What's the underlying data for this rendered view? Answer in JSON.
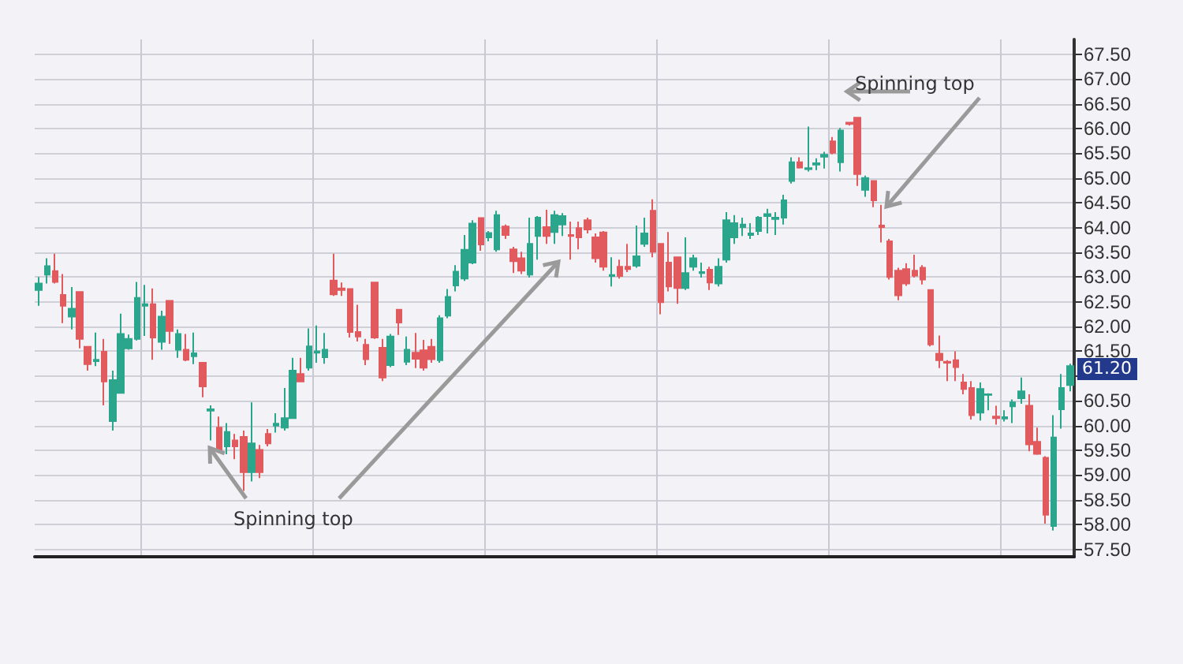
{
  "chart_data": {
    "type": "candlestick",
    "categories": [
      null,
      null,
      null,
      null,
      null,
      null,
      null,
      null,
      null,
      null,
      null,
      null,
      null,
      null,
      null,
      null,
      null,
      null,
      null,
      null,
      null,
      null,
      null,
      null,
      null,
      null,
      null,
      null,
      null,
      null,
      null,
      null,
      null,
      null,
      null,
      null,
      null,
      null,
      null,
      null,
      null,
      null,
      null,
      null,
      null,
      null,
      null,
      null,
      null,
      null,
      null,
      null,
      null,
      null,
      null,
      null,
      null,
      null,
      null,
      null,
      null,
      null,
      null,
      null,
      null,
      null,
      null,
      null,
      null,
      null,
      null,
      null,
      null,
      null,
      null,
      null,
      null,
      null,
      null,
      null,
      null,
      null,
      null,
      null,
      null,
      null,
      null,
      null,
      null,
      null,
      null,
      null,
      null,
      null,
      null,
      null,
      null,
      null,
      null,
      null,
      null,
      null,
      null,
      null,
      null,
      null,
      null,
      null,
      null,
      null,
      null,
      null,
      null,
      null,
      null,
      null,
      null,
      null,
      null,
      null,
      null,
      null,
      null,
      null,
      null,
      null,
      null
    ],
    "ohlc": [
      [
        62.74,
        63.0,
        62.42,
        62.87
      ],
      [
        63.05,
        63.38,
        62.87,
        63.22
      ],
      [
        63.12,
        63.47,
        62.87,
        62.9
      ],
      [
        62.64,
        63.06,
        62.07,
        62.42
      ],
      [
        62.2,
        62.8,
        61.94,
        62.36
      ],
      [
        62.7,
        62.7,
        61.56,
        61.75
      ],
      [
        61.59,
        61.59,
        61.11,
        61.24
      ],
      [
        61.3,
        61.88,
        61.2,
        61.33
      ],
      [
        61.49,
        61.75,
        60.41,
        60.89
      ],
      [
        60.09,
        61.11,
        59.9,
        60.92
      ],
      [
        60.66,
        62.26,
        60.66,
        61.85
      ],
      [
        61.56,
        61.84,
        61.53,
        61.75
      ],
      [
        61.75,
        62.9,
        61.72,
        62.58
      ],
      [
        62.42,
        62.84,
        61.81,
        62.45
      ],
      [
        62.45,
        62.77,
        61.33,
        61.78
      ],
      [
        61.69,
        62.32,
        61.53,
        62.2
      ],
      [
        62.52,
        62.52,
        61.65,
        61.91
      ],
      [
        61.53,
        61.94,
        61.37,
        61.85
      ],
      [
        61.53,
        61.85,
        61.3,
        61.33
      ],
      [
        61.4,
        61.88,
        61.24,
        61.46
      ],
      [
        61.27,
        61.27,
        60.57,
        60.79
      ],
      [
        60.3,
        60.41,
        59.7,
        60.33
      ],
      [
        59.96,
        60.18,
        59.45,
        59.48
      ],
      [
        59.58,
        60.05,
        59.42,
        59.87
      ],
      [
        59.7,
        59.83,
        59.32,
        59.58
      ],
      [
        59.77,
        59.9,
        58.68,
        59.06
      ],
      [
        59.06,
        60.47,
        58.87,
        59.64
      ],
      [
        59.51,
        59.61,
        58.94,
        59.06
      ],
      [
        59.83,
        59.93,
        59.58,
        59.64
      ],
      [
        60.0,
        60.25,
        59.86,
        60.04
      ],
      [
        59.96,
        60.76,
        59.9,
        60.15
      ],
      [
        60.15,
        61.37,
        60.15,
        61.11
      ],
      [
        61.04,
        61.37,
        60.89,
        60.89
      ],
      [
        61.17,
        61.96,
        61.11,
        61.6
      ],
      [
        61.47,
        62.02,
        61.27,
        61.5
      ],
      [
        61.38,
        61.87,
        61.25,
        61.53
      ],
      [
        62.93,
        63.47,
        62.62,
        62.65
      ],
      [
        62.77,
        62.89,
        62.62,
        62.74
      ],
      [
        62.76,
        62.76,
        61.78,
        61.89
      ],
      [
        61.89,
        62.44,
        61.7,
        61.8
      ],
      [
        61.63,
        61.75,
        61.22,
        61.34
      ],
      [
        62.89,
        62.89,
        61.75,
        61.78
      ],
      [
        61.57,
        61.75,
        60.9,
        60.97
      ],
      [
        61.22,
        61.85,
        61.18,
        61.8
      ],
      [
        62.34,
        62.34,
        61.83,
        62.08
      ],
      [
        61.29,
        61.8,
        61.22,
        61.53
      ],
      [
        61.47,
        61.87,
        61.16,
        61.35
      ],
      [
        61.52,
        61.73,
        61.11,
        61.17
      ],
      [
        61.59,
        61.75,
        61.27,
        61.34
      ],
      [
        61.32,
        62.23,
        61.27,
        62.17
      ],
      [
        62.22,
        62.76,
        62.17,
        62.6
      ],
      [
        62.83,
        63.24,
        62.71,
        63.11
      ],
      [
        62.97,
        63.85,
        62.92,
        63.55
      ],
      [
        63.29,
        64.15,
        63.26,
        64.08
      ],
      [
        64.19,
        64.19,
        63.53,
        63.66
      ],
      [
        63.8,
        63.93,
        63.72,
        63.89
      ],
      [
        63.56,
        64.34,
        63.51,
        64.25
      ],
      [
        64.02,
        64.06,
        63.77,
        63.85
      ],
      [
        63.56,
        63.61,
        63.08,
        63.32
      ],
      [
        63.38,
        63.51,
        63.06,
        63.13
      ],
      [
        63.05,
        64.2,
        62.99,
        63.67
      ],
      [
        63.83,
        64.23,
        63.35,
        64.2
      ],
      [
        64.01,
        64.36,
        63.67,
        63.83
      ],
      [
        63.91,
        64.34,
        63.67,
        64.25
      ],
      [
        64.06,
        64.29,
        63.83,
        64.23
      ],
      [
        63.85,
        64.12,
        63.35,
        63.83
      ],
      [
        63.99,
        64.12,
        63.56,
        63.8
      ],
      [
        64.15,
        64.2,
        63.88,
        63.96
      ],
      [
        63.8,
        63.88,
        63.29,
        63.38
      ],
      [
        63.9,
        63.93,
        63.13,
        63.21
      ],
      [
        63.02,
        63.4,
        62.81,
        63.04
      ],
      [
        63.21,
        63.35,
        62.97,
        63.02
      ],
      [
        63.21,
        63.67,
        63.1,
        63.16
      ],
      [
        63.23,
        64.04,
        63.19,
        63.42
      ],
      [
        63.67,
        64.2,
        63.61,
        63.88
      ],
      [
        64.34,
        64.57,
        63.4,
        63.51
      ],
      [
        63.67,
        63.67,
        62.25,
        62.49
      ],
      [
        63.29,
        63.91,
        62.71,
        62.81
      ],
      [
        63.4,
        63.4,
        62.46,
        62.78
      ],
      [
        62.78,
        63.8,
        62.74,
        63.08
      ],
      [
        63.21,
        63.45,
        63.13,
        63.38
      ],
      [
        63.08,
        63.29,
        62.99,
        63.1
      ],
      [
        63.15,
        63.21,
        62.74,
        62.89
      ],
      [
        62.87,
        63.38,
        62.81,
        63.21
      ],
      [
        63.35,
        64.31,
        63.29,
        64.15
      ],
      [
        63.8,
        64.25,
        63.67,
        64.09
      ],
      [
        64.01,
        64.2,
        63.83,
        64.06
      ],
      [
        63.85,
        64.09,
        63.77,
        63.88
      ],
      [
        63.93,
        64.23,
        63.85,
        64.2
      ],
      [
        64.23,
        64.38,
        63.88,
        64.27
      ],
      [
        64.17,
        64.31,
        63.85,
        64.2
      ],
      [
        64.2,
        64.66,
        64.06,
        64.55
      ],
      [
        64.94,
        65.42,
        64.89,
        65.32
      ],
      [
        65.32,
        65.42,
        65.19,
        65.21
      ],
      [
        65.18,
        66.04,
        65.13,
        65.2
      ],
      [
        65.27,
        65.4,
        65.16,
        65.3
      ],
      [
        65.43,
        65.53,
        65.19,
        65.47
      ],
      [
        65.74,
        65.83,
        65.48,
        65.51
      ],
      [
        65.32,
        66.01,
        65.13,
        65.96
      ],
      [
        66.12,
        66.13,
        66.06,
        66.09
      ],
      [
        66.22,
        66.22,
        64.84,
        65.08
      ],
      [
        64.76,
        65.05,
        64.62,
        65.0
      ],
      [
        64.94,
        64.94,
        64.41,
        64.55
      ],
      [
        64.04,
        64.46,
        63.7,
        64.01
      ],
      [
        63.72,
        63.77,
        62.95,
        63.0
      ],
      [
        63.13,
        63.19,
        62.53,
        62.63
      ],
      [
        63.16,
        63.28,
        62.82,
        62.87
      ],
      [
        63.13,
        63.45,
        62.99,
        63.03
      ],
      [
        63.19,
        63.24,
        62.85,
        62.95
      ],
      [
        62.74,
        62.74,
        61.6,
        61.64
      ],
      [
        61.45,
        61.82,
        61.16,
        61.32
      ],
      [
        61.29,
        61.32,
        60.9,
        61.27
      ],
      [
        61.32,
        61.5,
        60.9,
        61.18
      ],
      [
        60.87,
        61.04,
        60.63,
        60.74
      ],
      [
        60.76,
        60.9,
        60.12,
        60.21
      ],
      [
        60.26,
        60.87,
        60.1,
        60.74
      ],
      [
        60.62,
        60.65,
        60.31,
        60.63
      ],
      [
        60.18,
        60.4,
        60.02,
        60.15
      ],
      [
        60.14,
        60.31,
        60.08,
        60.17
      ],
      [
        60.39,
        60.53,
        60.05,
        60.47
      ],
      [
        60.55,
        60.97,
        60.44,
        60.69
      ],
      [
        60.4,
        60.63,
        59.48,
        59.62
      ],
      [
        59.67,
        59.96,
        59.41,
        59.43
      ],
      [
        59.35,
        59.38,
        58.02,
        58.2
      ],
      [
        57.97,
        60.21,
        57.88,
        59.76
      ],
      [
        60.33,
        61.04,
        59.94,
        60.76
      ],
      [
        60.82,
        61.25,
        60.69,
        61.2
      ]
    ],
    "colors": [
      "#2ba58c",
      "#2ba58c",
      "#e05a5e",
      "#e05a5e",
      "#2ba58c",
      "#e05a5e",
      "#e05a5e",
      "#2ba58c",
      "#e05a5e",
      "#2ba58c",
      "#2ba58c",
      "#2ba58c",
      "#2ba58c",
      "#2ba58c",
      "#e05a5e",
      "#2ba58c",
      "#e05a5e",
      "#2ba58c",
      "#e05a5e",
      "#2ba58c",
      "#e05a5e",
      "#2ba58c",
      "#e05a5e",
      "#2ba58c",
      "#e05a5e",
      "#e05a5e",
      "#2ba58c",
      "#e05a5e",
      "#e05a5e",
      "#2ba58c",
      "#2ba58c",
      "#2ba58c",
      "#e05a5e",
      "#2ba58c",
      "#2ba58c",
      "#2ba58c",
      "#e05a5e",
      "#e05a5e",
      "#e05a5e",
      "#e05a5e",
      "#e05a5e",
      "#e05a5e",
      "#e05a5e",
      "#2ba58c",
      "#e05a5e",
      "#2ba58c",
      "#e05a5e",
      "#e05a5e",
      "#e05a5e",
      "#2ba58c",
      "#2ba58c",
      "#2ba58c",
      "#2ba58c",
      "#2ba58c",
      "#e05a5e",
      "#2ba58c",
      "#2ba58c",
      "#e05a5e",
      "#e05a5e",
      "#e05a5e",
      "#2ba58c",
      "#2ba58c",
      "#e05a5e",
      "#2ba58c",
      "#2ba58c",
      "#e05a5e",
      "#e05a5e",
      "#e05a5e",
      "#e05a5e",
      "#e05a5e",
      "#2ba58c",
      "#e05a5e",
      "#e05a5e",
      "#2ba58c",
      "#2ba58c",
      "#e05a5e",
      "#e05a5e",
      "#e05a5e",
      "#e05a5e",
      "#2ba58c",
      "#2ba58c",
      "#2ba58c",
      "#e05a5e",
      "#2ba58c",
      "#2ba58c",
      "#2ba58c",
      "#2ba58c",
      "#2ba58c",
      "#2ba58c",
      "#2ba58c",
      "#2ba58c",
      "#2ba58c",
      "#2ba58c",
      "#e05a5e",
      "#2ba58c",
      "#2ba58c",
      "#2ba58c",
      "#e05a5e",
      "#2ba58c",
      "#e05a5e",
      "#e05a5e",
      "#2ba58c",
      "#e05a5e",
      "#e05a5e",
      "#e05a5e",
      "#e05a5e",
      "#e05a5e",
      "#e05a5e",
      "#e05a5e",
      "#e05a5e",
      "#e05a5e",
      "#e05a5e",
      "#e05a5e",
      "#e05a5e",
      "#e05a5e",
      "#2ba58c",
      "#2ba58c",
      "#e05a5e",
      "#2ba58c",
      "#2ba58c",
      "#2ba58c",
      "#e05a5e",
      "#e05a5e",
      "#e05a5e",
      "#2ba58c",
      "#2ba58c",
      "#2ba58c"
    ],
    "ylim": [
      57.35,
      67.8
    ],
    "yticks": [
      {
        "value": 57.5,
        "label": "57.50"
      },
      {
        "value": 58,
        "label": "58.00"
      },
      {
        "value": 58.5,
        "label": "58.50"
      },
      {
        "value": 59,
        "label": "59.00"
      },
      {
        "value": 59.5,
        "label": "59.50"
      },
      {
        "value": 60,
        "label": "60.00"
      },
      {
        "value": 60.5,
        "label": "60.50"
      },
      {
        "value": 61,
        "label": null
      },
      {
        "value": 61.5,
        "label": "61.50"
      },
      {
        "value": 62,
        "label": "62.00"
      },
      {
        "value": 62.5,
        "label": "62.50"
      },
      {
        "value": 63,
        "label": "63.00"
      },
      {
        "value": 63.5,
        "label": "63.50"
      },
      {
        "value": 64,
        "label": "64.00"
      },
      {
        "value": 64.5,
        "label": "64.50"
      },
      {
        "value": 65,
        "label": "65.00"
      },
      {
        "value": 65.5,
        "label": "65.50"
      },
      {
        "value": 66,
        "label": "66.00"
      },
      {
        "value": 66.5,
        "label": "66.50"
      },
      {
        "value": 67,
        "label": "67.00"
      },
      {
        "value": 67.5,
        "label": "67.50"
      }
    ],
    "annotations": [
      "Spinning top",
      "Spinning top",
      {
        "text": "61.20",
        "y": 61.2
      }
    ],
    "grid": true,
    "tick_labels": "y"
  }
}
